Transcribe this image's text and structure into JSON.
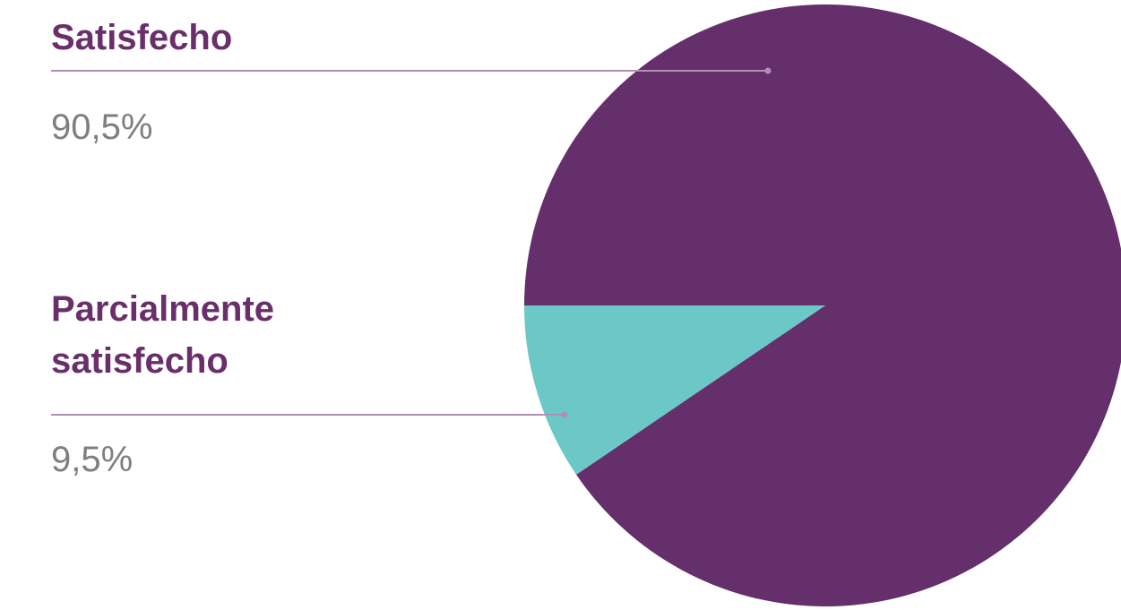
{
  "chart_data": {
    "type": "pie",
    "slices": [
      {
        "label": "Satisfecho",
        "value": 90.5,
        "value_label": "90,5%",
        "color": "#652f6b"
      },
      {
        "label": "Parcialmente satisfecho",
        "value": 9.5,
        "value_label": "9,5%",
        "color": "#6cc8c6"
      }
    ],
    "legend": "left",
    "leader_line_color": "#b08fb5"
  }
}
